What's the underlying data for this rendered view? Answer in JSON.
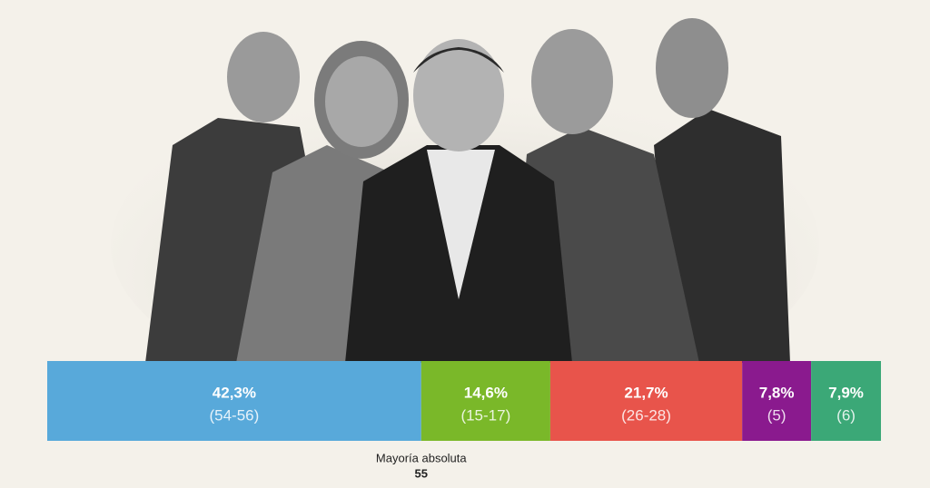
{
  "chart_data": {
    "type": "stacked-bar",
    "values": [
      42.3,
      14.6,
      21.7,
      7.8,
      7.9
    ],
    "value_labels": [
      "42,3%",
      "14,6%",
      "21,7%",
      "7,8%",
      "7,9%"
    ],
    "seat_labels": [
      "(54-56)",
      "(15-17)",
      "(26-28)",
      "(5)",
      "(6)"
    ],
    "colors": [
      "#58a9da",
      "#7ab829",
      "#e8544b",
      "#8a1a8e",
      "#3ba877"
    ],
    "annotation": {
      "label": "Mayoría absoluta",
      "value": 55
    }
  }
}
